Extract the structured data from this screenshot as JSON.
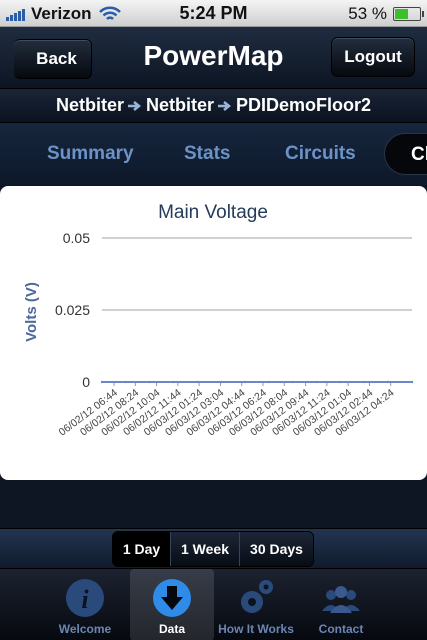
{
  "status_bar": {
    "carrier": "Verizon",
    "time": "5:24 PM",
    "battery": "53 %",
    "battery_level": 0.53
  },
  "nav": {
    "back_label": "Back",
    "title": "PowerMap",
    "logout_label": "Logout"
  },
  "breadcrumb": [
    "Netbiter",
    "Netbiter",
    "PDIDemoFloor2"
  ],
  "tabs": {
    "items": [
      "Summary",
      "Stats",
      "Circuits"
    ],
    "active": "Ch"
  },
  "chart_data": {
    "type": "line",
    "title": "Main Voltage",
    "ylabel": "Volts (V)",
    "xlabel": "",
    "ylim": [
      0,
      0.05
    ],
    "yticks": [
      "0.05",
      "0.025",
      "0"
    ],
    "x": [
      "06/02/12 06:44",
      "06/02/12 08:24",
      "06/02/12 10:04",
      "06/02/12 11:44",
      "06/03/12 01:24",
      "06/03/12 03:04",
      "06/03/12 04:44",
      "06/03/12 06:24",
      "06/03/12 08:04",
      "06/03/12 09:44",
      "06/03/12 11:24",
      "06/03/12 01:04",
      "06/03/12 02:44",
      "06/03/12 04:24"
    ],
    "series": [
      {
        "values": [
          0,
          0,
          0,
          0,
          0,
          0,
          0,
          0,
          0,
          0,
          0,
          0,
          0,
          0
        ],
        "color": "#6b86c9"
      }
    ],
    "grid": true
  },
  "range": {
    "options": [
      "1 Day",
      "1 Week",
      "30 Days"
    ],
    "active": "1 Day"
  },
  "tabbar": {
    "items": [
      {
        "label": "Welcome",
        "icon": "info-icon"
      },
      {
        "label": "Data",
        "icon": "download-icon"
      },
      {
        "label": "How It Works",
        "icon": "gears-icon"
      },
      {
        "label": "Contact",
        "icon": "people-icon"
      }
    ],
    "active": "Data"
  }
}
